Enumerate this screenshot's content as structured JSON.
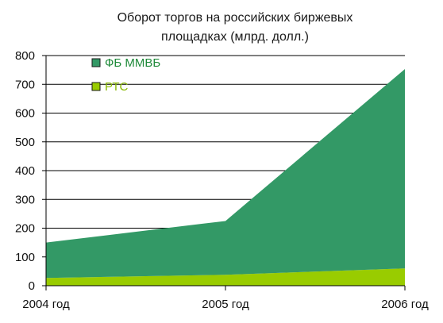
{
  "chart_data": {
    "type": "area",
    "stacked": true,
    "title_lines": [
      "Оборот торгов на российских биржевых",
      "площадках (млрд. долл.)"
    ],
    "categories": [
      "2004 год",
      "2005 год",
      "2006 год"
    ],
    "series": [
      {
        "name": "РТС",
        "color": "#99cc00",
        "values": [
          27,
          38,
          60
        ]
      },
      {
        "name": "ФБ ММВБ",
        "color": "#339966",
        "values": [
          123,
          187,
          693
        ]
      }
    ],
    "ylim": [
      0,
      800
    ],
    "yticks": [
      0,
      100,
      200,
      300,
      400,
      500,
      600,
      700,
      800
    ],
    "grid": true,
    "legend_position": "top-left",
    "legend_order": [
      "ФБ ММВБ",
      "РТС"
    ]
  }
}
